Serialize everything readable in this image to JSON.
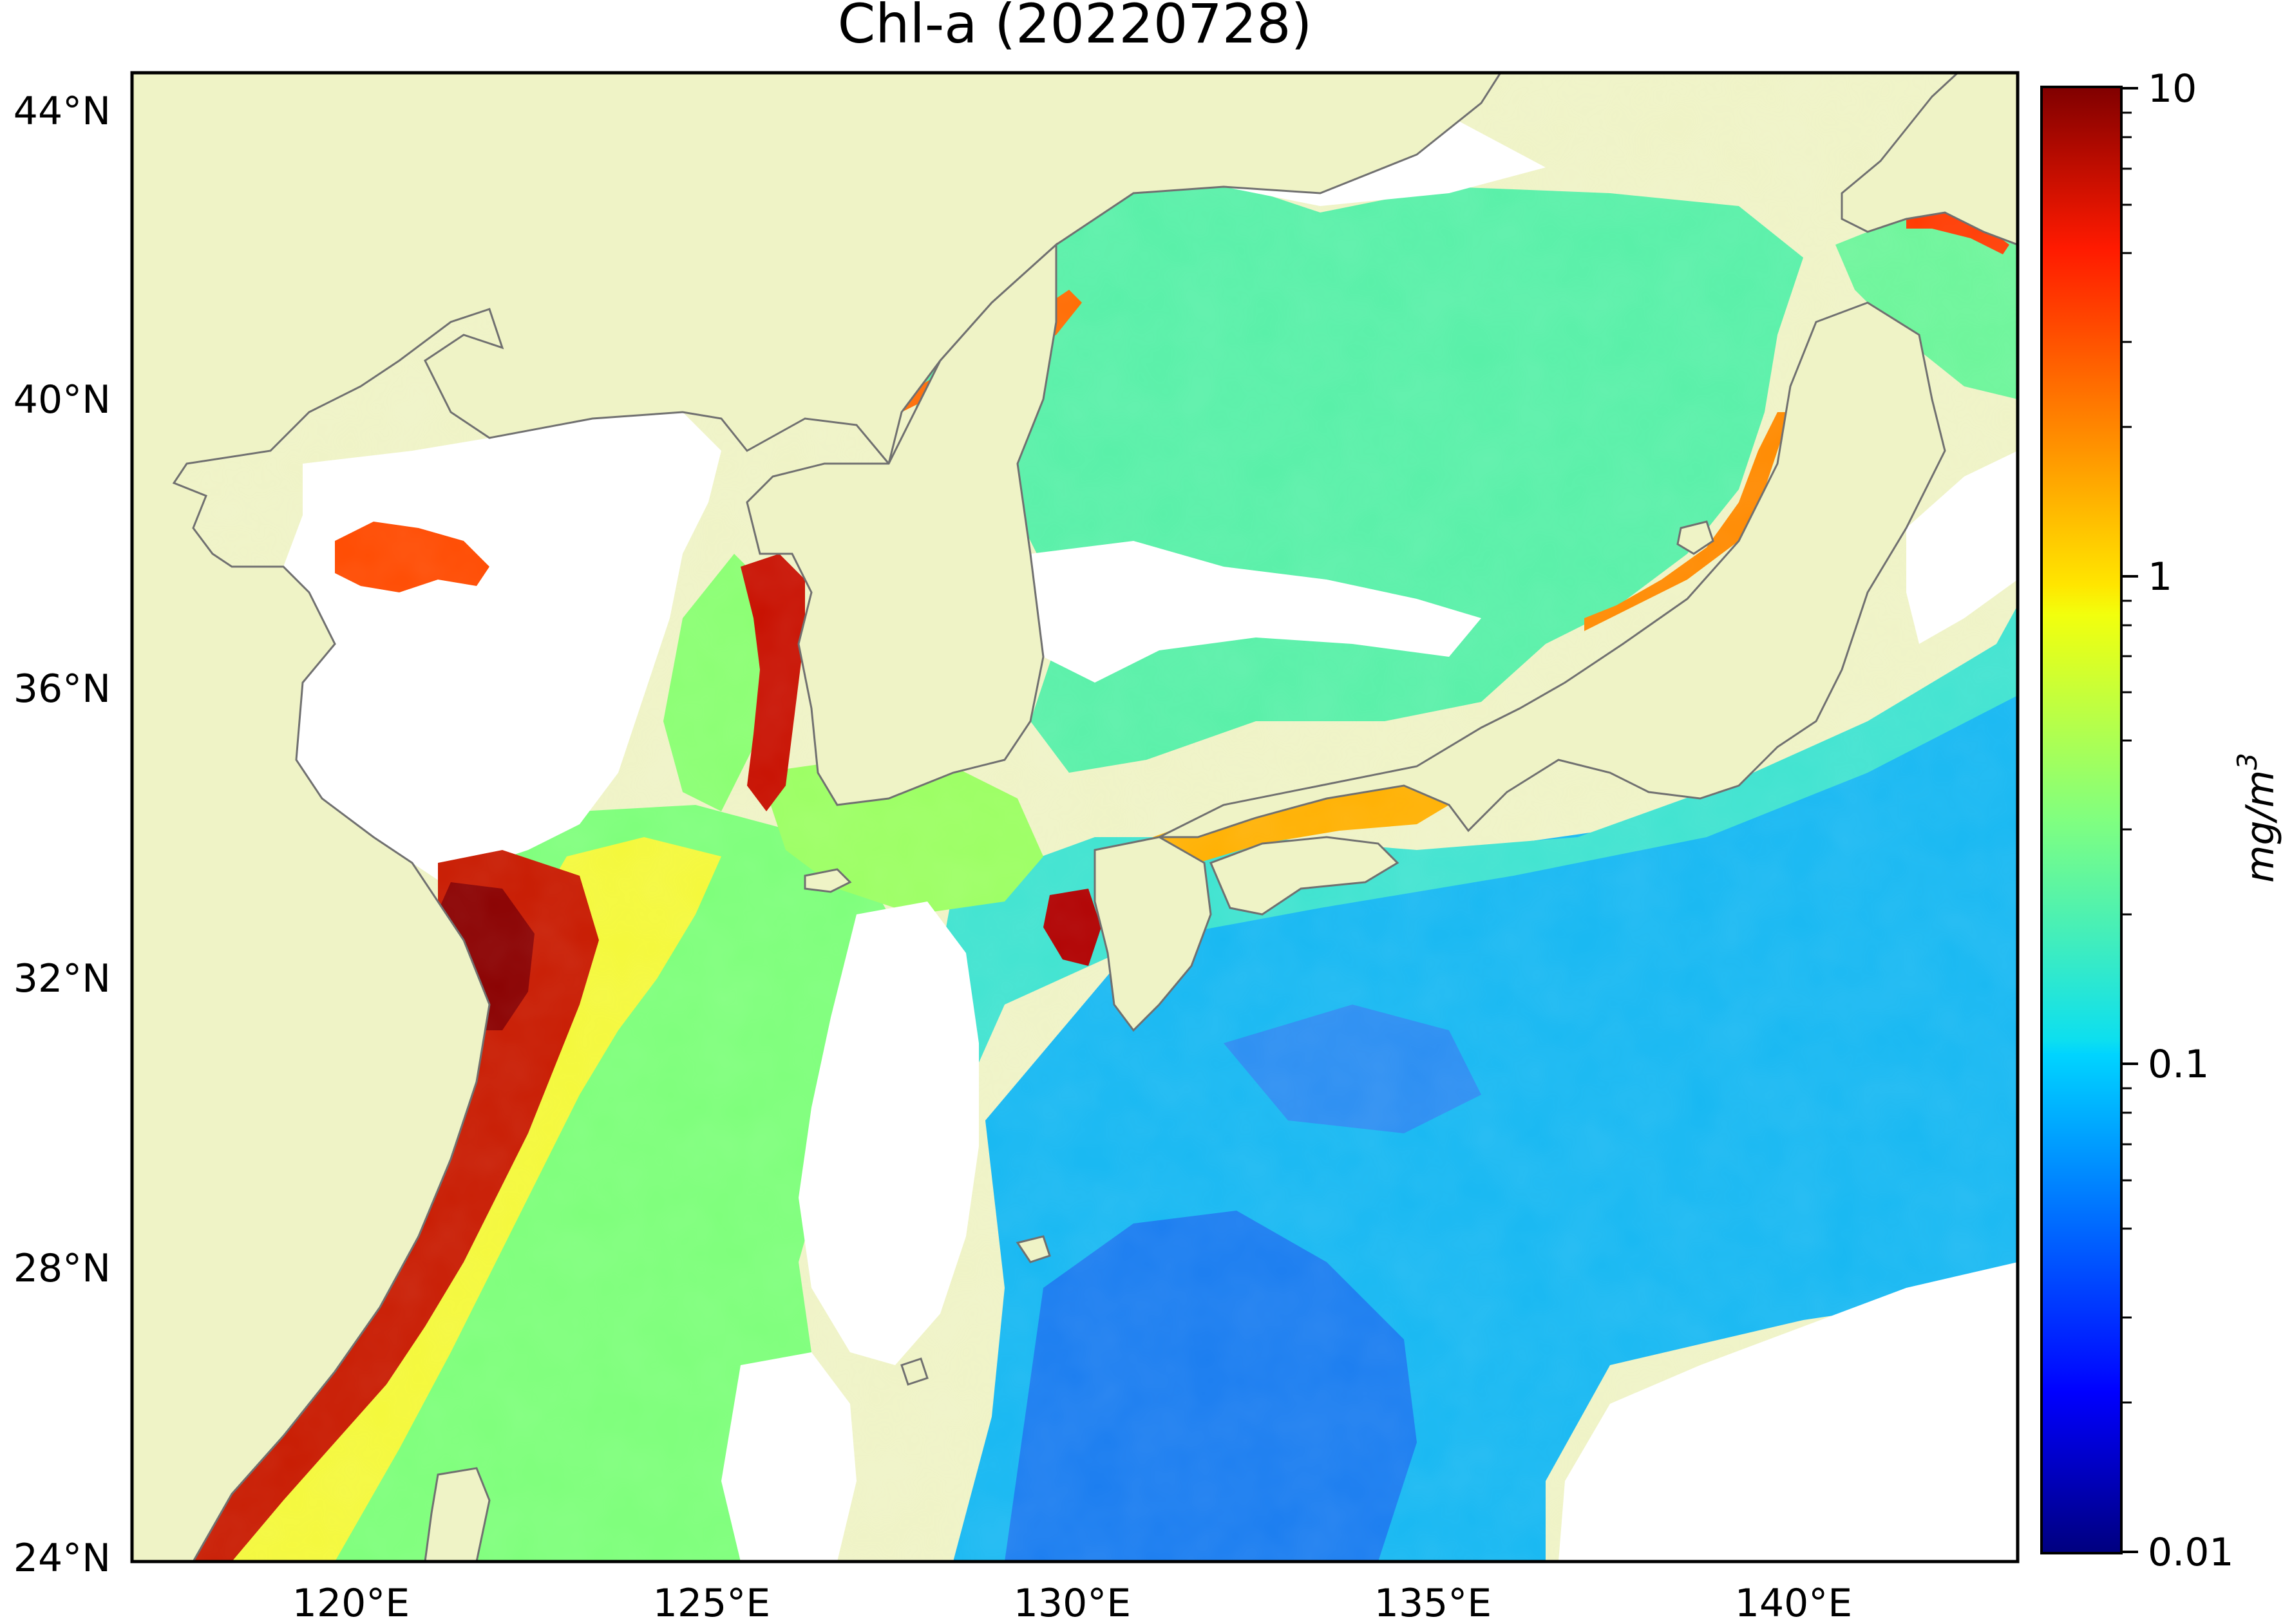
{
  "title": "Chl-a (20220728)",
  "map": {
    "lon_range": [
      116.8,
      143.0
    ],
    "lat_range": [
      24.0,
      44.5
    ],
    "lat_ticks": [
      {
        "value": 44,
        "label": "44°N"
      },
      {
        "value": 40,
        "label": "40°N"
      },
      {
        "value": 36,
        "label": "36°N"
      },
      {
        "value": 32,
        "label": "32°N"
      },
      {
        "value": 28,
        "label": "28°N"
      },
      {
        "value": 24,
        "label": "24°N"
      }
    ],
    "lon_ticks": [
      {
        "value": 120,
        "label": "120°E"
      },
      {
        "value": 125,
        "label": "125°E"
      },
      {
        "value": 130,
        "label": "130°E"
      },
      {
        "value": 135,
        "label": "135°E"
      },
      {
        "value": 140,
        "label": "140°E"
      }
    ],
    "colors": {
      "land": "#eff3c6",
      "coastline": "#707070",
      "no_data": "#ffffff",
      "frame": "#000000"
    }
  },
  "colorbar": {
    "scale": "log",
    "range": [
      0.01,
      10
    ],
    "colormap": "jet",
    "ticks": [
      {
        "value": 10,
        "label": "10"
      },
      {
        "value": 1,
        "label": "1"
      },
      {
        "value": 0.1,
        "label": "0.1"
      },
      {
        "value": 0.01,
        "label": "0.01"
      }
    ],
    "unit_label": "mg/m",
    "unit_superscript": "3"
  }
}
